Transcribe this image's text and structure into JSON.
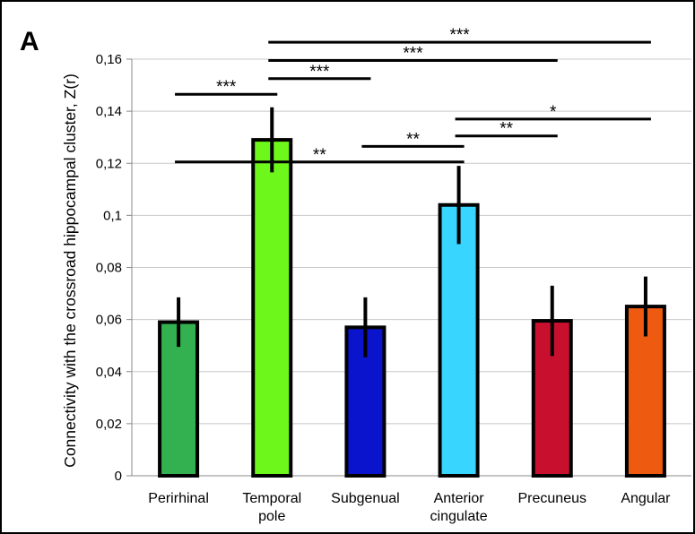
{
  "panel_label": "A",
  "chart_data": {
    "type": "bar",
    "title": "",
    "xlabel": "",
    "ylabel": "Connectivity with the crossroad hippocampal cluster, Z(r)",
    "ylim": [
      0,
      0.16
    ],
    "yticks": [
      0,
      0.02,
      0.04,
      0.06,
      0.08,
      0.1,
      0.12,
      0.14,
      0.16
    ],
    "ytick_labels": [
      "0",
      "0,02",
      "0,04",
      "0,06",
      "0,08",
      "0,1",
      "0,12",
      "0,14",
      "0,16"
    ],
    "grid": true,
    "legend": "none",
    "categories": [
      [
        "Perirhinal"
      ],
      [
        "Temporal",
        "pole"
      ],
      [
        "Subgenual"
      ],
      [
        "Anterior",
        "cingulate"
      ],
      [
        "Precuneus"
      ],
      [
        "Angular"
      ]
    ],
    "values": [
      0.059,
      0.129,
      0.057,
      0.104,
      0.0595,
      0.065
    ],
    "errors": [
      0.0095,
      0.0125,
      0.0115,
      0.015,
      0.0135,
      0.0115
    ],
    "colors": [
      "#33b04f",
      "#6ef71a",
      "#0a14cc",
      "#38d5ff",
      "#c8102e",
      "#ee5a0f"
    ],
    "significance": [
      {
        "from": 1,
        "to": 5,
        "y": 0.1665,
        "label": "***"
      },
      {
        "from": 1,
        "to": 4,
        "y": 0.1595,
        "label": "***"
      },
      {
        "from": 1,
        "to": 2,
        "y": 0.1525,
        "label": "***"
      },
      {
        "from": 0,
        "to": 1,
        "y": 0.1465,
        "label": "***"
      },
      {
        "from": 3,
        "to": 5,
        "y": 0.137,
        "label": "*"
      },
      {
        "from": 3,
        "to": 4,
        "y": 0.1305,
        "label": "**"
      },
      {
        "from": 2,
        "to": 3,
        "y": 0.1265,
        "label": "**"
      },
      {
        "from": 0,
        "to": 3,
        "y": 0.1205,
        "label": "**"
      }
    ]
  }
}
